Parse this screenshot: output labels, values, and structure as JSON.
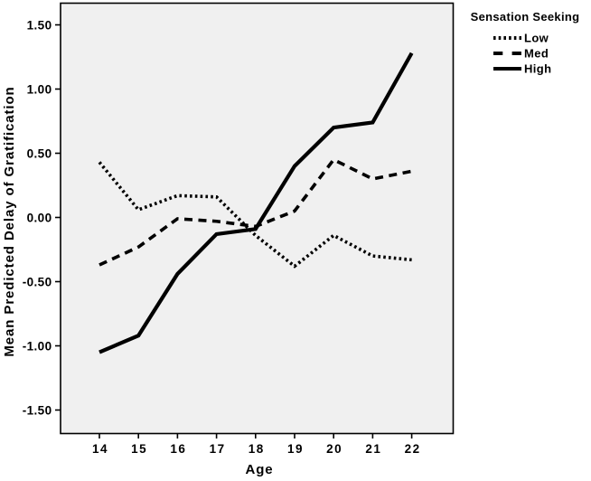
{
  "chart_data": {
    "type": "line",
    "title": "",
    "xlabel": "Age",
    "ylabel": "Mean Predicted Delay of Gratification",
    "x": [
      14,
      15,
      16,
      17,
      18,
      19,
      20,
      21,
      22
    ],
    "x_tick_labels": [
      "14",
      "15",
      "16",
      "17",
      "18",
      "19",
      "20",
      "21",
      "22"
    ],
    "y_ticks": [
      1.5,
      1.0,
      0.5,
      0.0,
      -0.5,
      -1.0,
      -1.5
    ],
    "y_tick_labels": [
      "1.50",
      "1.00",
      "0.50",
      "0.00",
      "-0.50",
      "-1.00",
      "-1.50"
    ],
    "ylim": [
      -1.67,
      1.67
    ],
    "grid": false,
    "legend": {
      "title": "Sensation Seeking",
      "position": "outside-top-right",
      "entries": [
        "Low",
        "Med",
        "High"
      ]
    },
    "series": [
      {
        "name": "Low",
        "style": "dotted",
        "values": [
          0.43,
          0.06,
          0.17,
          0.16,
          -0.14,
          -0.38,
          -0.14,
          -0.3,
          -0.33
        ]
      },
      {
        "name": "Med",
        "style": "dashed",
        "values": [
          -0.37,
          -0.23,
          -0.01,
          -0.03,
          -0.07,
          0.05,
          0.45,
          0.3,
          0.36
        ]
      },
      {
        "name": "High",
        "style": "solid",
        "values": [
          -1.05,
          -0.92,
          -0.44,
          -0.13,
          -0.09,
          0.4,
          0.7,
          0.74,
          1.28
        ]
      }
    ],
    "colors": {
      "line": "#000000",
      "text": "#000000",
      "plot_background": "#f0f0f0",
      "page_background": "#ffffff"
    }
  }
}
